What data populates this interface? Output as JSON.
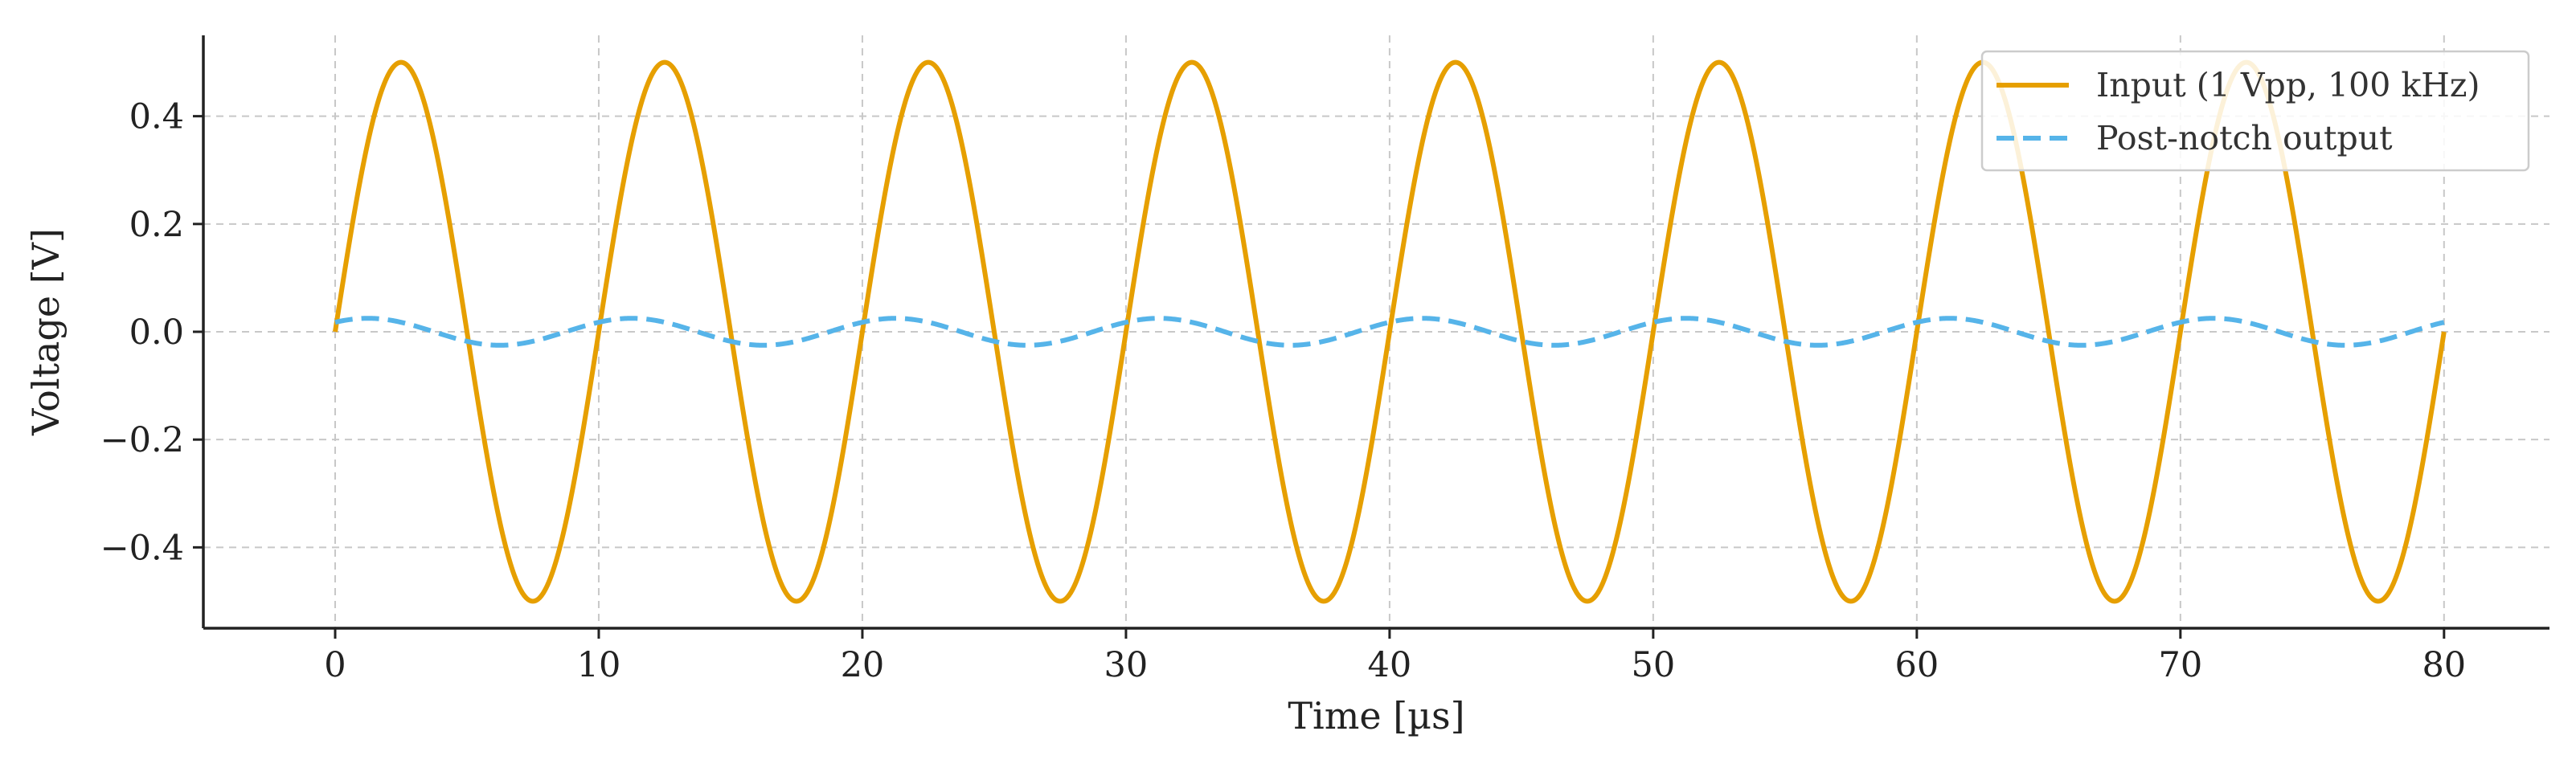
{
  "chart_data": {
    "type": "line",
    "title": "",
    "xlabel": "Time [µs]",
    "ylabel": "Voltage [V]",
    "xlim": [
      -5,
      84
    ],
    "ylim": [
      -0.55,
      0.55
    ],
    "x_ticks": [
      0,
      10,
      20,
      30,
      40,
      50,
      60,
      70,
      80
    ],
    "x_tick_labels": [
      "0",
      "10",
      "20",
      "30",
      "40",
      "50",
      "60",
      "70",
      "80"
    ],
    "y_ticks": [
      -0.4,
      -0.2,
      0.0,
      0.2,
      0.4
    ],
    "y_tick_labels": [
      "−0.4",
      "−0.2",
      "0.0",
      "0.2",
      "0.4"
    ],
    "grid": true,
    "legend_position": "top-right",
    "series": [
      {
        "name": "Input (1 Vpp, 100 kHz)",
        "style": "solid",
        "color": "#E69F00",
        "amplitude": 0.5,
        "frequency_khz": 100,
        "phase_deg": 0,
        "x_range": [
          0,
          80
        ]
      },
      {
        "name": "Post-notch output",
        "style": "dashed",
        "color": "#56B4E9",
        "amplitude": 0.025,
        "frequency_khz": 100,
        "phase_deg": 45,
        "x_range": [
          0,
          80
        ]
      }
    ]
  }
}
